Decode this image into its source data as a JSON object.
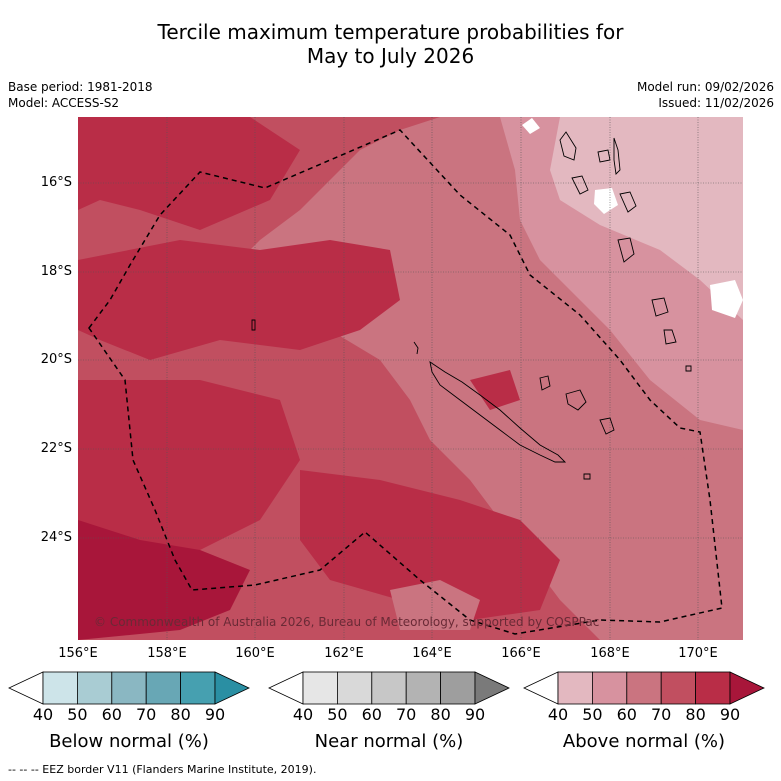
{
  "title_line1": "Tercile maximum temperature probabilities for",
  "title_line2": "May to July 2026",
  "meta": {
    "base_period": "Base period: 1981-2018",
    "model": "Model: ACCESS-S2",
    "model_run": "Model run: 09/02/2026",
    "issued": "Issued: 11/02/2026"
  },
  "map": {
    "copyright": "© Commonwealth of Australia 2026, Bureau of Meteorology, supported by COSPPac",
    "lat_labels": [
      "16°S",
      "18°S",
      "20°S",
      "22°S",
      "24°S"
    ],
    "lon_labels": [
      "156°E",
      "158°E",
      "160°E",
      "162°E",
      "164°E",
      "166°E",
      "168°E",
      "170°E"
    ]
  },
  "colorbars": {
    "ticks": [
      "40",
      "50",
      "60",
      "70",
      "80",
      "90"
    ],
    "below": {
      "title": "Below normal (%)",
      "colors": [
        "#ffffff",
        "#cde4e9",
        "#a9ccd3",
        "#8ab7c2",
        "#68a7b5",
        "#46a0b0",
        "#2a8fa3"
      ]
    },
    "near": {
      "title": "Near normal (%)",
      "colors": [
        "#ffffff",
        "#e6e6e6",
        "#d9d9d9",
        "#c7c7c7",
        "#b3b3b3",
        "#9e9e9e",
        "#7a7a7a"
      ]
    },
    "above": {
      "title": "Above normal (%)",
      "colors": [
        "#ffffff",
        "#e3b8c0",
        "#d7929f",
        "#ca7480",
        "#c14f60",
        "#b92d47",
        "#a8163a"
      ]
    }
  },
  "footer": "--  --  -- EEZ border V11 (Flanders Marine Institute, 2019)."
}
